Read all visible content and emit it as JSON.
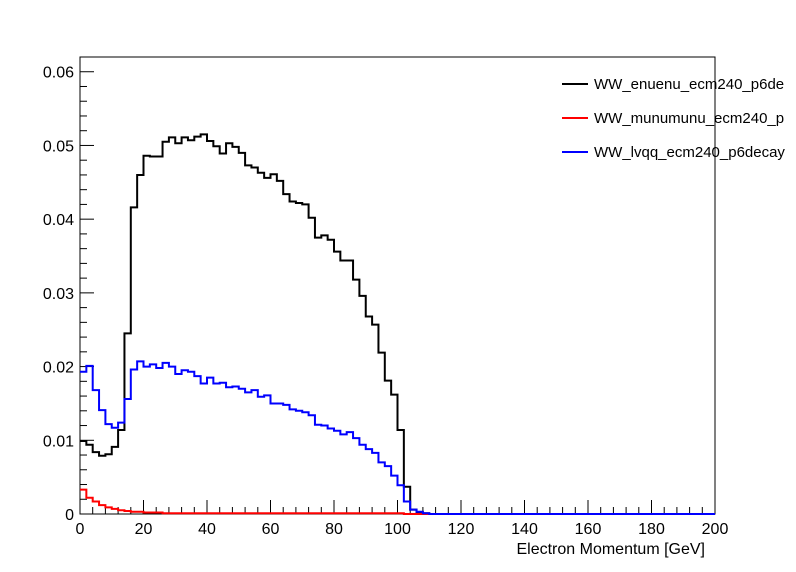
{
  "chart_data": {
    "type": "line",
    "title": "",
    "xlabel": "Electron Momentum [GeV]",
    "ylabel": "",
    "xlim": [
      0,
      200
    ],
    "ylim": [
      0,
      0.062
    ],
    "x_ticks": [
      "0",
      "20",
      "40",
      "60",
      "80",
      "100",
      "120",
      "140",
      "160",
      "180",
      "200"
    ],
    "y_ticks": [
      "0",
      "0.01",
      "0.02",
      "0.03",
      "0.04",
      "0.05",
      "0.06"
    ],
    "y_tick_values": [
      0,
      0.01,
      0.02,
      0.03,
      0.04,
      0.05,
      0.06
    ],
    "x_tick_values": [
      0,
      20,
      40,
      60,
      80,
      100,
      120,
      140,
      160,
      180,
      200
    ],
    "grid": false,
    "legend_position": "top-right",
    "bin_width": 2,
    "series": [
      {
        "name": "WW_enuenu_ecm240_p6de",
        "color": "#000000",
        "values": [
          0.0099,
          0.0094,
          0.0084,
          0.0079,
          0.0081,
          0.0091,
          0.0114,
          0.0245,
          0.0416,
          0.046,
          0.0486,
          0.0485,
          0.0485,
          0.0505,
          0.0511,
          0.0503,
          0.0511,
          0.0507,
          0.0512,
          0.0515,
          0.0506,
          0.0499,
          0.0489,
          0.0503,
          0.0498,
          0.049,
          0.0473,
          0.047,
          0.0463,
          0.0456,
          0.0461,
          0.0452,
          0.0434,
          0.0424,
          0.0422,
          0.042,
          0.0402,
          0.0375,
          0.0378,
          0.0372,
          0.0356,
          0.0344,
          0.0344,
          0.0318,
          0.0296,
          0.0268,
          0.0257,
          0.0219,
          0.0181,
          0.0162,
          0.0114,
          0.0037,
          0.0006,
          0.0002,
          0.0001,
          0,
          0,
          0,
          0,
          0,
          0,
          0,
          0,
          0,
          0,
          0,
          0,
          0,
          0,
          0,
          0,
          0,
          0,
          0,
          0,
          0,
          0,
          0,
          0,
          0,
          0,
          0,
          0,
          0,
          0,
          0,
          0,
          0,
          0,
          0,
          0,
          0,
          0,
          0,
          0,
          0,
          0,
          0,
          0,
          0
        ]
      },
      {
        "name": "WW_munumunu_ecm240_p",
        "color": "#ff0000",
        "values": [
          0.0033,
          0.0022,
          0.0017,
          0.0012,
          0.0009,
          0.0007,
          0.0005,
          0.0004,
          0.0003,
          0.0003,
          0.0002,
          0.0002,
          0.0002,
          0.0001,
          0.0001,
          0.0001,
          0.0001,
          0.0001,
          0.0001,
          0.0001,
          0.0001,
          0.0001,
          0.0001,
          0.0001,
          0.0001,
          0.0001,
          0.0001,
          0.0001,
          0.0001,
          0.0001,
          0.0001,
          0.0001,
          0.0001,
          0.0001,
          0.0001,
          0.0001,
          0.0001,
          0.0001,
          0.0001,
          0.0001,
          0.0001,
          0.0001,
          0.0001,
          0.0001,
          0.0001,
          0.0001,
          0.0001,
          0.0001,
          0.0001,
          0.0001,
          0.0001,
          0,
          0,
          0,
          0,
          0,
          0,
          0,
          0,
          0,
          0,
          0,
          0,
          0,
          0,
          0,
          0,
          0,
          0,
          0,
          0,
          0,
          0,
          0,
          0,
          0,
          0,
          0,
          0,
          0,
          0,
          0,
          0,
          0,
          0,
          0,
          0,
          0,
          0,
          0,
          0,
          0,
          0,
          0,
          0,
          0,
          0,
          0,
          0,
          0
        ]
      },
      {
        "name": "WW_lvqq_ecm240_p6decay",
        "color": "#0000ff",
        "values": [
          0.0193,
          0.0201,
          0.0168,
          0.0141,
          0.0122,
          0.0117,
          0.0124,
          0.0156,
          0.0196,
          0.0207,
          0.02,
          0.0203,
          0.0198,
          0.0205,
          0.02,
          0.019,
          0.0195,
          0.0193,
          0.0187,
          0.0177,
          0.0185,
          0.0177,
          0.0178,
          0.0172,
          0.0173,
          0.017,
          0.0165,
          0.0168,
          0.0159,
          0.0161,
          0.015,
          0.015,
          0.0148,
          0.0142,
          0.014,
          0.0138,
          0.0134,
          0.0121,
          0.012,
          0.0116,
          0.0113,
          0.0108,
          0.0111,
          0.0103,
          0.0094,
          0.0088,
          0.0083,
          0.007,
          0.0065,
          0.0052,
          0.0039,
          0.0017,
          0.0006,
          0.0003,
          0.0001,
          0,
          0,
          0,
          0,
          0,
          0,
          0,
          0,
          0,
          0,
          0,
          0,
          0,
          0,
          0,
          0,
          0,
          0,
          0,
          0,
          0,
          0,
          0,
          0,
          0,
          0,
          0,
          0,
          0,
          0,
          0,
          0,
          0,
          0,
          0,
          0,
          0,
          0,
          0,
          0,
          0,
          0,
          0,
          0,
          0
        ]
      }
    ]
  }
}
